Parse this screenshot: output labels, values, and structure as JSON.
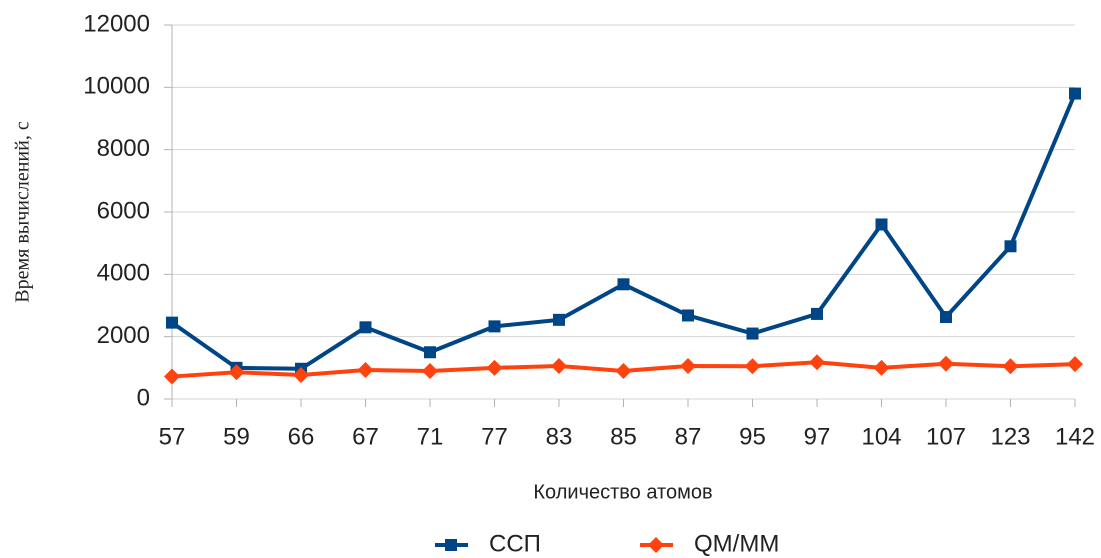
{
  "chart_data": {
    "type": "line",
    "x_label": "Количество атомов",
    "y_label": "Время вычислений, с",
    "categories": [
      "57",
      "59",
      "66",
      "67",
      "71",
      "77",
      "83",
      "85",
      "87",
      "95",
      "97",
      "104",
      "107",
      "123",
      "142"
    ],
    "series": [
      {
        "name": "ССП",
        "color": "#004586",
        "marker": "square",
        "values": [
          2450,
          1000,
          970,
          2300,
          1500,
          2330,
          2540,
          3680,
          2680,
          2100,
          2730,
          5600,
          2630,
          4900,
          9800
        ]
      },
      {
        "name": "QM/MM",
        "color": "#ff420e",
        "marker": "diamond",
        "values": [
          720,
          860,
          770,
          930,
          900,
          1000,
          1060,
          900,
          1060,
          1050,
          1180,
          1000,
          1130,
          1050,
          1120
        ]
      }
    ],
    "ylim": [
      0,
      12000
    ],
    "yticks": [
      0,
      2000,
      4000,
      6000,
      8000,
      10000,
      12000
    ],
    "grid": true,
    "legend": "bottom"
  }
}
